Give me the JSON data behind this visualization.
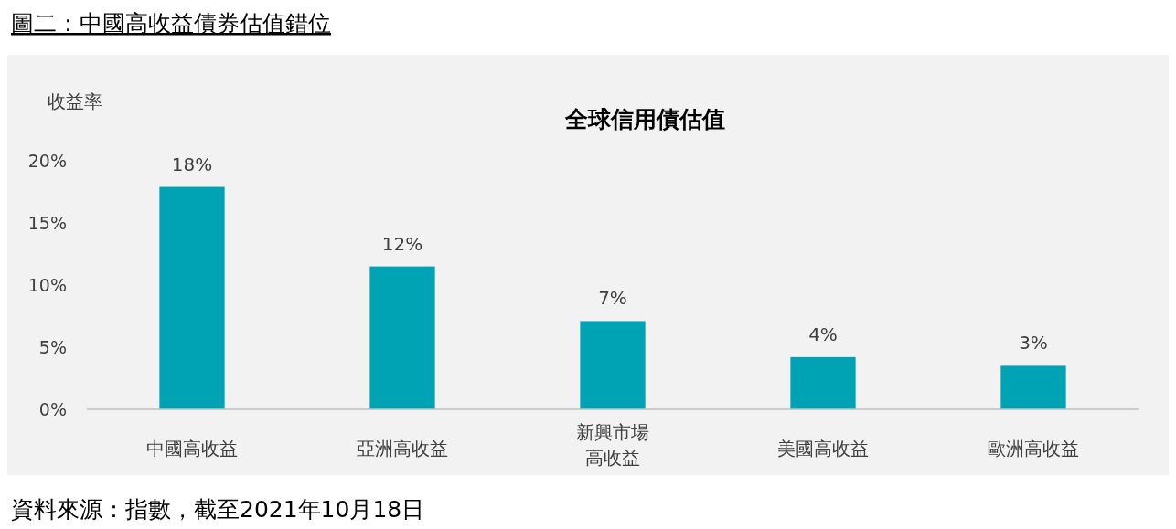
{
  "chart_data": {
    "type": "bar",
    "title": "圖二：中國高收益債券估值錯位",
    "subtitle": "全球信用債估值",
    "ylabel": "收益率",
    "categories": [
      "中國高收益",
      "亞洲高收益",
      "新興市場高收益",
      "美國高收益",
      "歐洲高收益"
    ],
    "values": [
      17.9,
      11.5,
      7.1,
      4.2,
      3.5
    ],
    "value_labels": [
      "18%",
      "12%",
      "7%",
      "4%",
      "3%"
    ],
    "color": "#00a3b4",
    "ylim": [
      0,
      20
    ],
    "yticks": [
      {
        "value": 0,
        "label": "0%"
      },
      {
        "value": 5,
        "label": "5%"
      },
      {
        "value": 10,
        "label": "10%"
      },
      {
        "value": 15,
        "label": "15%"
      },
      {
        "value": 20,
        "label": "20%"
      }
    ],
    "grid": false,
    "annotations": [
      "資料來源：指數，截至2021年10月18日"
    ]
  }
}
